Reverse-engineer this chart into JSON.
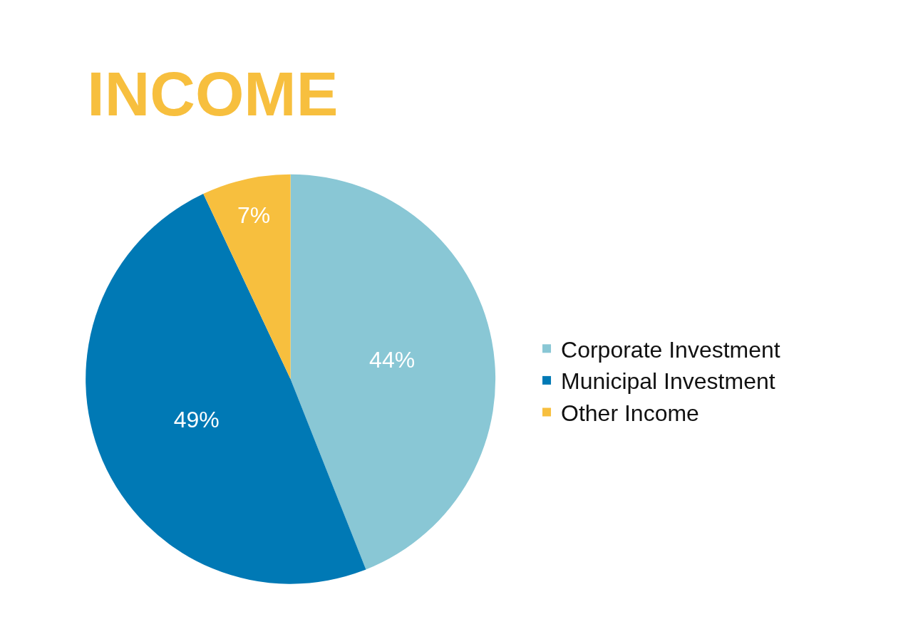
{
  "chart_data": {
    "type": "pie",
    "title": "INCOME",
    "categories": [
      "Corporate Investment",
      "Municipal Investment",
      "Other Income"
    ],
    "values": [
      44,
      49,
      7
    ],
    "value_labels": [
      "44%",
      "49%",
      "7%"
    ],
    "colors": [
      "#89c7d5",
      "#0079b5",
      "#f7bf3e"
    ],
    "legend": "right"
  }
}
